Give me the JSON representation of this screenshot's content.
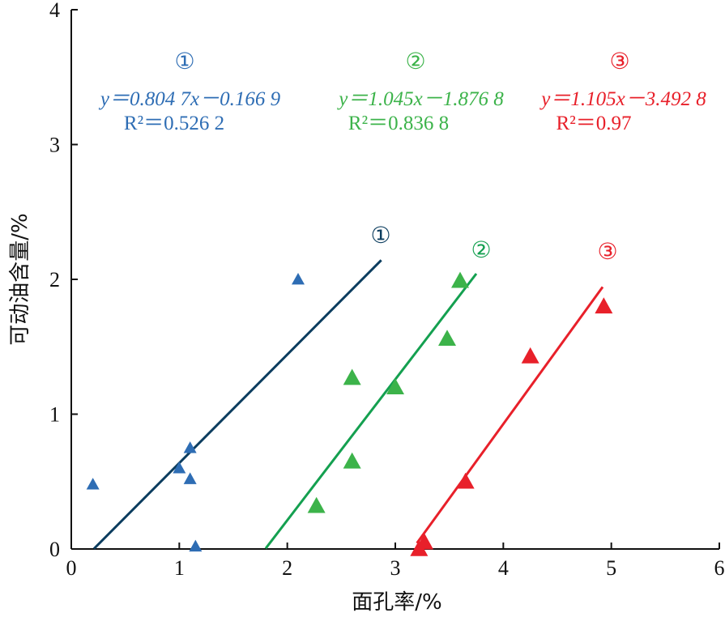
{
  "chart_data": {
    "type": "scatter",
    "xlabel": "面孔率/%",
    "ylabel": "可动油含量/%",
    "xlim": [
      0,
      6
    ],
    "ylim": [
      0,
      4
    ],
    "x_ticks": [
      0,
      1,
      2,
      3,
      4,
      5,
      6
    ],
    "y_ticks": [
      0,
      1,
      2,
      3,
      4
    ],
    "grid": false,
    "series": [
      {
        "name": "①",
        "color": "#2e6db4",
        "line_color": "#0c3d5f",
        "marker": "triangle",
        "marker_size": "small",
        "points": [
          {
            "x": 0.2,
            "y": 0.48
          },
          {
            "x": 1.0,
            "y": 0.6
          },
          {
            "x": 1.1,
            "y": 0.75
          },
          {
            "x": 1.1,
            "y": 0.52
          },
          {
            "x": 1.15,
            "y": 0.02
          },
          {
            "x": 2.1,
            "y": 2.0
          }
        ],
        "fit_line": {
          "x": [
            0.21,
            2.87
          ]
        },
        "equation": "y＝0.804 7x－0.166 9",
        "r2": "R²＝0.526 2"
      },
      {
        "name": "②",
        "color": "#3cb34a",
        "line_color": "#14a050",
        "marker": "triangle",
        "marker_size": "large",
        "points": [
          {
            "x": 2.27,
            "y": 0.32
          },
          {
            "x": 2.6,
            "y": 0.65
          },
          {
            "x": 2.6,
            "y": 1.27
          },
          {
            "x": 3.0,
            "y": 1.2
          },
          {
            "x": 3.48,
            "y": 1.56
          },
          {
            "x": 3.6,
            "y": 1.99
          }
        ],
        "fit_line": {
          "x": [
            1.8,
            3.75
          ]
        },
        "equation": "y＝1.045x－1.876 8",
        "r2": "R²＝0.836 8"
      },
      {
        "name": "③",
        "color": "#e8202a",
        "line_color": "#e8202a",
        "marker": "triangle",
        "marker_size": "large",
        "points": [
          {
            "x": 3.22,
            "y": 0.0
          },
          {
            "x": 3.27,
            "y": 0.05
          },
          {
            "x": 3.65,
            "y": 0.5
          },
          {
            "x": 4.25,
            "y": 1.43
          },
          {
            "x": 4.93,
            "y": 1.8
          }
        ],
        "fit_line": {
          "x": [
            3.2,
            4.92
          ]
        },
        "equation": "y＝1.105x－3.492 8",
        "r2": "R²＝0.97"
      }
    ]
  }
}
